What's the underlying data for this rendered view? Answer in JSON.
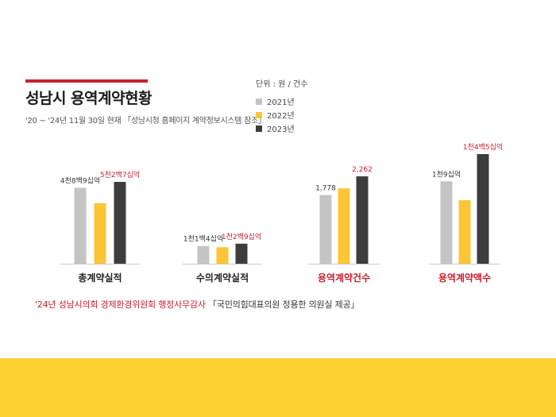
{
  "header": {
    "title": "성남시 용역계약현황",
    "subtitle": "'20 ~ '24년 11월 30일 현재 「성남시청 홈페이지 계약정보시스템 참조」"
  },
  "legend": {
    "unit": "단위 : 원 / 건수",
    "items": [
      {
        "label": "2021년",
        "color": "#c4c4c4"
      },
      {
        "label": "2022년",
        "color": "#fcc536"
      },
      {
        "label": "2023년",
        "color": "#3d3d3d"
      }
    ]
  },
  "chart_data": [
    {
      "type": "bar",
      "title": "총계약실적",
      "series_names": [
        "2021년",
        "2022년",
        "2023년"
      ],
      "values": [
        4890,
        3900,
        5270
      ],
      "labels": [
        "4천8백9십억",
        "",
        "5천2백7십억"
      ]
    },
    {
      "type": "bar",
      "title": "수의계약실적",
      "series_names": [
        "2021년",
        "2022년",
        "2023년"
      ],
      "values": [
        1140,
        1060,
        1290
      ],
      "labels": [
        "1천1백4십억",
        "",
        "1천2백9십억"
      ]
    },
    {
      "type": "bar",
      "title": "용역계약건수",
      "series_names": [
        "2021년",
        "2022년",
        "2023년"
      ],
      "values": [
        1778,
        1950,
        2262
      ],
      "labels": [
        "1,778",
        "",
        "2,262"
      ]
    },
    {
      "type": "bar",
      "title": "용역계약액수",
      "series_names": [
        "2021년",
        "2022년",
        "2023년"
      ],
      "values": [
        1090,
        840,
        1450
      ],
      "labels": [
        "1천9십억",
        "",
        "1천4백5십억"
      ]
    }
  ],
  "footnote": {
    "red_part": "'24년 성남시의회 경제환경위원회 행정사무감사",
    "black_part": "「국민의힘대표의원 정용한 의원실 제공」"
  }
}
